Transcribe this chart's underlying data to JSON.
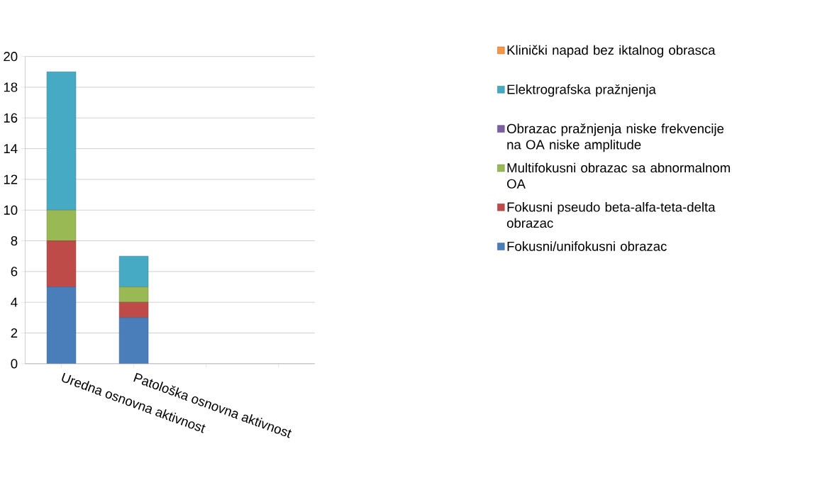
{
  "chart_data": {
    "type": "bar",
    "stacked": true,
    "categories": [
      "Uredna osnovna aktivnost",
      "Patološka osnovna aktivnost",
      null,
      null
    ],
    "series": [
      {
        "name": "Fokusni/unifokusni obrazac",
        "color": "#4a7ebb",
        "values": [
          5,
          3,
          null,
          null
        ]
      },
      {
        "name": "Fokusni pseudo beta-alfa-teta-delta obrazac",
        "color": "#be4b48",
        "values": [
          3,
          1,
          null,
          null
        ]
      },
      {
        "name": "Multifokusni obrazac sa abnormalnom OA",
        "color": "#98b954",
        "values": [
          2,
          1,
          null,
          null
        ]
      },
      {
        "name": "Obrazac pražnjenja niske frekvencije na OA niske amplitude",
        "color": "#7d60a0",
        "values": [
          0,
          0,
          null,
          null
        ]
      },
      {
        "name": "Elektrografska pražnjenja",
        "color": "#46aac5",
        "values": [
          9,
          2,
          null,
          null
        ]
      },
      {
        "name": "Klinički napad bez iktalnog obrasca",
        "color": "#f79646",
        "values": [
          0,
          0,
          null,
          null
        ]
      }
    ],
    "ylim": [
      0,
      20
    ],
    "yticks": [
      0,
      2,
      4,
      6,
      8,
      10,
      12,
      14,
      16,
      18,
      20
    ],
    "grid": "y",
    "legend": "right"
  }
}
